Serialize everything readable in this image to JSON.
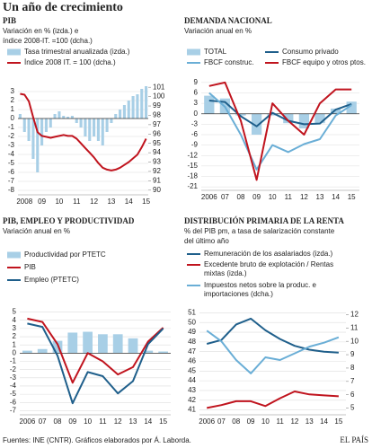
{
  "header": {
    "title": "Un año de crecimiento"
  },
  "chart_data": [
    {
      "type": "combo",
      "title": "PIB",
      "subtitle": [
        "Variación en % (izda.) e",
        "índice 2008-IT. =100 (dcha.)"
      ],
      "categories": [
        null,
        "2008",
        null,
        null,
        null,
        "09",
        null,
        null,
        null,
        "10",
        null,
        null,
        null,
        "11",
        null,
        null,
        null,
        "12",
        null,
        null,
        null,
        "13",
        null,
        null,
        null,
        "14",
        null,
        null,
        null,
        "15"
      ],
      "series": [
        {
          "name": "Tasa trimestral anualizada (izda.)",
          "mark": "bar",
          "color": "#a8cfe6",
          "values": [
            0.5,
            -1.5,
            -2.5,
            -4.5,
            -6.0,
            -3.0,
            -1.5,
            -1.0,
            0.5,
            0.8,
            0.3,
            0.2,
            0.3,
            -0.5,
            -1.0,
            -2.0,
            -2.5,
            -2.0,
            -2.5,
            -3.0,
            -1.5,
            -0.5,
            0.5,
            1.0,
            1.5,
            2.0,
            2.5,
            2.7,
            3.3,
            3.6
          ]
        },
        {
          "name": "Índice 2008 IT. = 100 (dcha.)",
          "mark": "line",
          "axis": "y2",
          "color": "#c0141e",
          "values": [
            100.3,
            100.2,
            99.5,
            97.8,
            96.2,
            95.8,
            95.7,
            95.6,
            95.7,
            95.8,
            95.9,
            95.8,
            95.8,
            95.5,
            95.0,
            94.5,
            94.0,
            93.5,
            92.9,
            92.4,
            92.2,
            92.1,
            92.2,
            92.4,
            92.7,
            93.0,
            93.4,
            93.8,
            94.6,
            95.5
          ]
        }
      ],
      "ylim": [
        -8.5,
        4
      ],
      "yticks": [
        3,
        2,
        1,
        0,
        -1,
        -2,
        -3,
        -4,
        -5,
        -6,
        -7,
        -8
      ],
      "y2lim": [
        89.5,
        101.5
      ],
      "y2ticks": [
        101,
        100,
        99,
        98,
        97,
        96,
        95,
        94,
        93,
        92,
        91,
        90
      ],
      "grid": true
    },
    {
      "type": "combo",
      "title": "DEMANDA NACIONAL",
      "subtitle": [
        "Variación anual en %"
      ],
      "categories": [
        "2006",
        "07",
        "08",
        "09",
        "10",
        "11",
        "12",
        "13",
        "14",
        "15"
      ],
      "series": [
        {
          "name": "TOTAL",
          "mark": "bar",
          "color": "#a8cfe6",
          "values": [
            5.2,
            4.4,
            -0.5,
            -6.0,
            -0.5,
            -2.7,
            -4.2,
            -2.7,
            1.5,
            3.5
          ]
        },
        {
          "name": "Consumo privado",
          "mark": "line",
          "color": "#1f5f8b",
          "values": [
            3.8,
            3.4,
            -0.7,
            -3.6,
            0.3,
            -2.0,
            -3.0,
            -2.8,
            1.2,
            2.8
          ]
        },
        {
          "name": "FBCF construc.",
          "mark": "line",
          "color": "#6aaed6",
          "values": [
            6,
            2,
            -6,
            -16,
            -9,
            -11,
            -8.7,
            -7.3,
            -0.5,
            2.5
          ]
        },
        {
          "name": "FBCF equipo y otros ptos.",
          "mark": "line",
          "color": "#c0141e",
          "values": [
            8,
            9,
            -2,
            -19,
            3,
            -2,
            -6,
            3,
            7,
            7
          ]
        }
      ],
      "ylim": [
        -22,
        10
      ],
      "yticks": [
        9,
        6,
        3,
        0,
        -3,
        -6,
        -9,
        -12,
        -15,
        -18,
        -21
      ],
      "grid": true
    },
    {
      "type": "combo",
      "title": "PIB, EMPLEO Y PRODUCTIVIDAD",
      "subtitle": [
        "Variación anual en %"
      ],
      "categories": [
        "2006",
        "07",
        "08",
        "09",
        "10",
        "11",
        "12",
        "13",
        "14",
        "15"
      ],
      "series": [
        {
          "name": "Productividad por PTETC",
          "mark": "bar",
          "color": "#a8cfe6",
          "values": [
            0.3,
            0.5,
            1.5,
            2.5,
            2.6,
            2.3,
            2.3,
            1.8,
            0.3,
            0.2
          ]
        },
        {
          "name": "PIB",
          "mark": "line",
          "color": "#c0141e",
          "values": [
            4.2,
            3.8,
            1.1,
            -3.6,
            0.0,
            -1.0,
            -2.6,
            -1.7,
            1.4,
            3.1
          ]
        },
        {
          "name": "Empleo (PTETC)",
          "mark": "line",
          "color": "#1f5f8b",
          "values": [
            3.6,
            3.2,
            -0.3,
            -6.1,
            -2.3,
            -2.8,
            -4.9,
            -3.4,
            1.1,
            3.0
          ]
        }
      ],
      "ylim": [
        -7.5,
        5.5
      ],
      "yticks": [
        5,
        4,
        3,
        2,
        1,
        0,
        -1,
        -2,
        -3,
        -4,
        -5,
        -6,
        -7
      ],
      "grid": true
    },
    {
      "type": "combo",
      "title": "DISTRIBUCIÓN PRIMARIA DE LA RENTA",
      "subtitle": [
        "% del PIB pm, a tasa de salarización constante",
        "del último año"
      ],
      "categories": [
        "2006",
        "07",
        "08",
        "09",
        "10",
        "11",
        "12",
        "13",
        "14",
        "15"
      ],
      "series": [
        {
          "name": "Remuneración de los asalariados (izda.)",
          "mark": "line",
          "color": "#1f5f8b",
          "values": [
            47.8,
            48.2,
            49.8,
            50.4,
            49.2,
            48.3,
            47.6,
            47.2,
            47.0,
            46.9
          ]
        },
        {
          "name": "Excedente bruto de explotación / Rentas mixtas (izda.)",
          "mark": "line",
          "color": "#c0141e",
          "values": [
            41.2,
            41.5,
            41.9,
            41.9,
            41.4,
            42.2,
            42.9,
            42.6,
            42.5,
            42.4
          ]
        },
        {
          "name": "Impuestos netos sobre la produc. e importaciones (dcha.)",
          "mark": "line",
          "axis": "y2",
          "color": "#6aaed6",
          "values": [
            10.8,
            10.0,
            8.6,
            7.6,
            8.8,
            8.6,
            9.1,
            9.6,
            9.9,
            10.3
          ]
        }
      ],
      "ylim": [
        40.5,
        51.5
      ],
      "yticks": [
        51,
        50,
        49,
        48,
        47,
        46,
        45,
        44,
        43,
        42,
        41
      ],
      "y2lim": [
        4.5,
        12.5
      ],
      "y2ticks": [
        12,
        11,
        10,
        9,
        8,
        7,
        6,
        5
      ],
      "grid": true
    }
  ],
  "footer": {
    "source": "Fuentes: INE (CNTR). Gráficos elaborados por Á. Laborda.",
    "brand": "EL PAÍS"
  }
}
